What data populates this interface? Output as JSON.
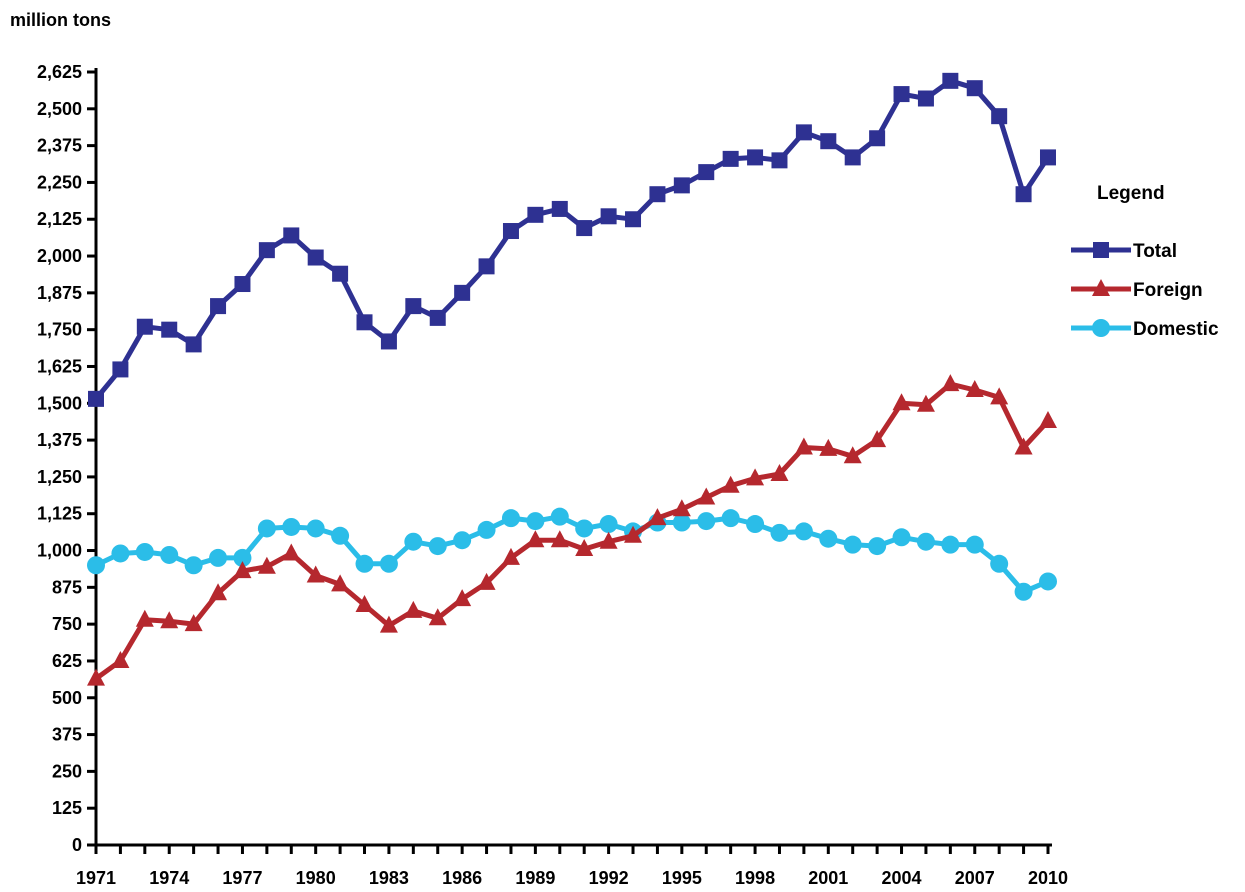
{
  "chart_data": {
    "type": "line",
    "title": "",
    "ylabel": "million tons",
    "xlabel": "",
    "ylim": [
      0,
      2625
    ],
    "y_ticks": [
      "0",
      "125",
      "250",
      "375",
      "500",
      "625",
      "750",
      "875",
      "1,000",
      "1,125",
      "1,250",
      "1,375",
      "1,500",
      "1,625",
      "1,750",
      "1,875",
      "2,000",
      "2,125",
      "2,250",
      "2,375",
      "2,500",
      "2,625"
    ],
    "x_tick_labels": [
      "1971",
      "1974",
      "1977",
      "1980",
      "1983",
      "1986",
      "1989",
      "1992",
      "1995",
      "1998",
      "2001",
      "2004",
      "2007",
      "2010"
    ],
    "x": [
      1971,
      1972,
      1973,
      1974,
      1975,
      1976,
      1977,
      1978,
      1979,
      1980,
      1981,
      1982,
      1983,
      1984,
      1985,
      1986,
      1987,
      1988,
      1989,
      1990,
      1991,
      1992,
      1993,
      1994,
      1995,
      1996,
      1997,
      1998,
      1999,
      2000,
      2001,
      2002,
      2003,
      2004,
      2005,
      2006,
      2007,
      2008,
      2009,
      2010
    ],
    "grid": false,
    "legend": {
      "title": "Legend",
      "placement": "right"
    },
    "series": [
      {
        "name": "Total",
        "color": "#2e3192",
        "marker": "square",
        "values": [
          1515,
          1615,
          1760,
          1750,
          1700,
          1830,
          1905,
          2020,
          2070,
          1995,
          1940,
          1775,
          1710,
          1830,
          1790,
          1875,
          1965,
          2085,
          2140,
          2160,
          2095,
          2135,
          2125,
          2210,
          2240,
          2285,
          2330,
          2335,
          2325,
          2420,
          2390,
          2335,
          2400,
          2550,
          2535,
          2595,
          2570,
          2475,
          2210,
          2335
        ]
      },
      {
        "name": "Foreign",
        "color": "#b5282e",
        "marker": "triangle",
        "values": [
          565,
          625,
          765,
          760,
          750,
          855,
          930,
          945,
          990,
          915,
          885,
          815,
          745,
          795,
          770,
          835,
          890,
          975,
          1035,
          1035,
          1005,
          1030,
          1050,
          1110,
          1140,
          1180,
          1220,
          1245,
          1260,
          1350,
          1345,
          1320,
          1375,
          1500,
          1495,
          1565,
          1545,
          1520,
          1350,
          1440
        ]
      },
      {
        "name": "Domestic",
        "color": "#2bbde8",
        "marker": "circle",
        "values": [
          950,
          990,
          995,
          985,
          950,
          975,
          975,
          1075,
          1080,
          1075,
          1050,
          955,
          955,
          1030,
          1015,
          1035,
          1070,
          1110,
          1100,
          1115,
          1075,
          1090,
          1065,
          1095,
          1095,
          1100,
          1110,
          1090,
          1060,
          1065,
          1040,
          1020,
          1015,
          1045,
          1030,
          1020,
          1020,
          955,
          860,
          895
        ]
      }
    ]
  }
}
